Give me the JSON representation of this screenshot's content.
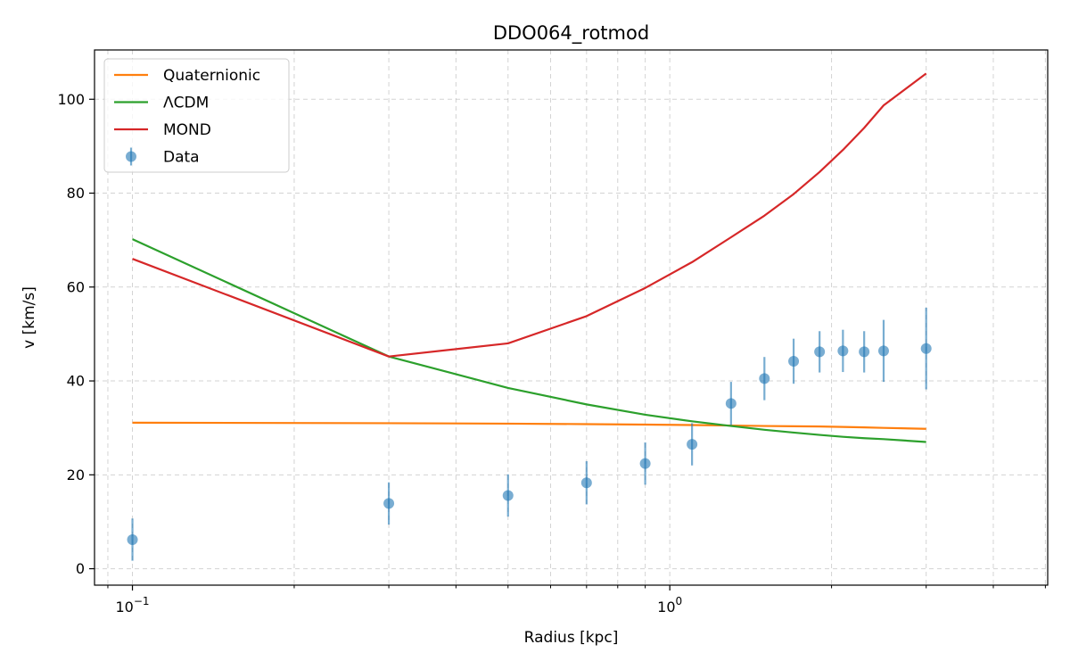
{
  "chart_data": {
    "type": "line",
    "title": "DDO064_rotmod",
    "xlabel": "Radius [kpc]",
    "ylabel": "v [km/s]",
    "x_scale": "log",
    "xlim": [
      0.085,
      5.05
    ],
    "ylim": [
      -3.5,
      110.5
    ],
    "x_ticks": [
      {
        "value": 0.1,
        "base": "10",
        "exp": "−1"
      },
      {
        "value": 1,
        "base": "10",
        "exp": "0"
      }
    ],
    "y_ticks": [
      0,
      20,
      40,
      60,
      80,
      100
    ],
    "grid": true,
    "legend_position": "upper-left",
    "series": [
      {
        "name": "Quaternionic",
        "color": "#ff7f0e",
        "kind": "line",
        "x": [
          0.1,
          0.3,
          0.5,
          0.7,
          0.9,
          1.1,
          1.3,
          1.5,
          1.7,
          1.9,
          2.1,
          2.3,
          2.5,
          3.0
        ],
        "y": [
          31.1,
          31.0,
          30.9,
          30.8,
          30.7,
          30.6,
          30.5,
          30.4,
          30.35,
          30.3,
          30.2,
          30.1,
          30.0,
          29.8
        ]
      },
      {
        "name": "ΛCDM",
        "color": "#2ca02c",
        "kind": "line",
        "x": [
          0.1,
          0.3,
          0.5,
          0.7,
          0.9,
          1.1,
          1.3,
          1.5,
          1.7,
          1.9,
          2.1,
          2.3,
          2.5,
          3.0
        ],
        "y": [
          70.2,
          45.2,
          38.5,
          35.0,
          32.8,
          31.4,
          30.4,
          29.6,
          29.0,
          28.5,
          28.1,
          27.8,
          27.6,
          27.0
        ]
      },
      {
        "name": "MOND",
        "color": "#d62728",
        "kind": "line",
        "x": [
          0.1,
          0.3,
          0.5,
          0.7,
          0.9,
          1.1,
          1.3,
          1.5,
          1.7,
          1.9,
          2.1,
          2.3,
          2.5,
          3.0
        ],
        "y": [
          66.0,
          45.2,
          48.0,
          53.8,
          59.8,
          65.3,
          70.6,
          75.2,
          79.8,
          84.5,
          89.2,
          93.9,
          98.7,
          105.5
        ]
      },
      {
        "name": "Data",
        "color": "#1f77b4",
        "kind": "errorbar",
        "x": [
          0.1,
          0.3,
          0.5,
          0.7,
          0.9,
          1.1,
          1.3,
          1.5,
          1.7,
          1.9,
          2.1,
          2.3,
          2.5,
          3.0
        ],
        "y": [
          6.2,
          13.9,
          15.6,
          18.3,
          22.4,
          26.5,
          35.2,
          40.5,
          44.2,
          46.2,
          46.4,
          46.2,
          46.4,
          46.9
        ],
        "err": [
          4.5,
          4.5,
          4.5,
          4.6,
          4.5,
          4.5,
          4.6,
          4.6,
          4.8,
          4.4,
          4.5,
          4.4,
          6.6,
          8.7
        ]
      }
    ]
  }
}
